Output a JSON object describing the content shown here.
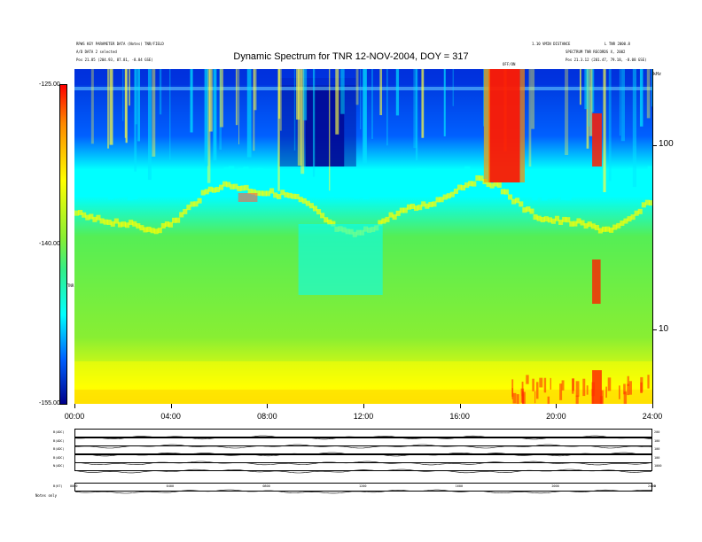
{
  "header": {
    "top_left_line1": "RPWS  KEY PARAMETER DATA  (Notes) TNR/FIELD",
    "top_left_line2": "A/D  DATA 2 selected",
    "pos_left": "Pos    21.85 (204.93, 87.81, -8.84 GSE)",
    "top_right_line1": "1.10 VMIN  DISTANCE",
    "top_right_line2": "L TNR 2000.8",
    "top_right_line3": "SPECTRUM  TNR RECORDS  X, 2002",
    "pos_right": "Pos    21.3.12 (201.47, 79.18, -8.08 GSE)",
    "khz": "kHz",
    "marker": "OFF/ON"
  },
  "colors": {
    "dark_blue": "#00008b",
    "blue": "#0040ff",
    "cyan": "#00ffff",
    "green": "#66dd44",
    "yellow": "#ffff00",
    "red": "#ff0000"
  },
  "chart_data": {
    "type": "heatmap",
    "title": "Dynamic Spectrum for TNR 12-NOV-2004, DOY = 317",
    "colorbar": {
      "label": "TNR",
      "ticks": [
        "-125.00",
        "-140.00",
        "-155.00"
      ],
      "values": [
        -125,
        -140,
        -155
      ],
      "colors": [
        "#ff0000",
        "#ffff00",
        "#66dd44",
        "#00ffff",
        "#0040ff",
        "#00008b"
      ]
    },
    "x_axis": {
      "ticks": [
        "00:00",
        "04:00",
        "08:00",
        "12:00",
        "16:00",
        "20:00",
        "24:00"
      ],
      "hours": [
        0,
        4,
        8,
        12,
        16,
        20,
        24
      ]
    },
    "y_axis_right": {
      "unit": "kHz",
      "ticks": [
        "100",
        "10"
      ],
      "values": [
        100,
        10
      ],
      "scale": "log"
    },
    "features": [
      {
        "name": "strong emission band",
        "t_start": 17.2,
        "t_end": 18.5,
        "level": "red"
      },
      {
        "name": "burst",
        "t_start": 21.5,
        "t_end": 21.9,
        "level": "red"
      }
    ]
  },
  "bottom_panels": {
    "labels": [
      "B(ADC)",
      "B(ADC)",
      "B(ADC)",
      "B(ADC)",
      "N(ADC)",
      "B(KT)"
    ],
    "right_ticks": [
      "200",
      "100",
      "100",
      "100",
      "1000",
      "0"
    ],
    "x_ticks": [
      "0000",
      "0400",
      "0800",
      "1200",
      "1600",
      "2000",
      "2400"
    ],
    "footer": "Notes   only"
  }
}
